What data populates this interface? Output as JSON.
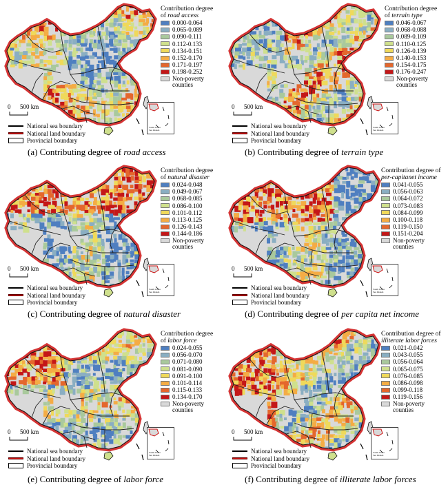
{
  "colors": {
    "non_poverty": "#d9d9d9",
    "sea_boundary": "#000000",
    "land_boundary": "#cc1010",
    "province_fill": "#ffffff"
  },
  "non_poverty_label": [
    "Non-poverty",
    "counties"
  ],
  "boundary_legend": [
    "National sea boundary",
    "National land boundary",
    "Provincial boundary"
  ],
  "scale_label": "500 km",
  "scale_zero": "0",
  "inset_label": [
    "South China",
    "Sea Islands"
  ],
  "panels": [
    {
      "caption_prefix": "(a) Contributing degree of ",
      "caption_italic": "road access",
      "legend_title_line1": "Contribution degree",
      "legend_title_prefix": "of ",
      "legend_title_italic": "road access",
      "classes": [
        "0.000-0.064",
        "0.065-0.089",
        "0.090-0.111",
        "0.112-0.133",
        "0.134-0.151",
        "0.152-0.170",
        "0.171-0.197",
        "0.198-0.252"
      ],
      "colors": [
        "#4f7fc0",
        "#8aaec2",
        "#a9c99c",
        "#cfe08d",
        "#efd95b",
        "#f4ac45",
        "#e4672d",
        "#c41718"
      ]
    },
    {
      "caption_prefix": "(b) Contributing degree of ",
      "caption_italic": "terrain type",
      "legend_title_line1": "Contribution degree",
      "legend_title_prefix": "of ",
      "legend_title_italic": "terrain type",
      "classes": [
        "0.046-0.067",
        "0.068-0.088",
        "0.089-0.109",
        "0.110-0.125",
        "0.126-0.139",
        "0.140-0.153",
        "0.154-0.175",
        "0.176-0.247"
      ],
      "colors": [
        "#4f7fc0",
        "#8aaec2",
        "#a9c99c",
        "#cfe08d",
        "#efd95b",
        "#f4ac45",
        "#e4672d",
        "#c41718"
      ]
    },
    {
      "caption_prefix": "(c) Contributing degree of ",
      "caption_italic": "natural disaster",
      "legend_title_line1": "Contribution degree",
      "legend_title_prefix": "of ",
      "legend_title_italic": "natural disaster",
      "classes": [
        "0.024-0.048",
        "0.049-0.067",
        "0.068-0.085",
        "0.086-0.100",
        "0.101-0.112",
        "0.113-0.125",
        "0.126-0.143",
        "0.144-0.186"
      ],
      "colors": [
        "#4f7fc0",
        "#8aaec2",
        "#a9c99c",
        "#cfe08d",
        "#efd95b",
        "#f4ac45",
        "#e4672d",
        "#c41718"
      ]
    },
    {
      "caption_prefix": "(d)  Contributing degree of ",
      "caption_italic": "per capita net income",
      "legend_title_line1": "Contribution degree of",
      "legend_title_prefix": "",
      "legend_title_italic": "per-capitanet income",
      "classes": [
        "0.041-0.055",
        "0.056-0.063",
        "0.064-0.072",
        "0.073-0.083",
        "0.084-0.099",
        "0.100-0.118",
        "0.119-0.150",
        "0.151-0.204"
      ],
      "colors": [
        "#4f7fc0",
        "#8aaec2",
        "#a9c99c",
        "#cfe08d",
        "#efd95b",
        "#f4ac45",
        "#e4672d",
        "#c41718"
      ]
    },
    {
      "caption_prefix": "(e) Contributing degree of ",
      "caption_italic": "labor force",
      "legend_title_line1": "Contribution degree",
      "legend_title_prefix": "of ",
      "legend_title_italic": "labor force",
      "classes": [
        "0.024-0.055",
        "0.056-0.070",
        "0.071-0.080",
        "0.081-0.090",
        "0.091-0.100",
        "0.101-0.114",
        "0.115-0.133",
        "0.134-0.170"
      ],
      "colors": [
        "#4f7fc0",
        "#8aaec2",
        "#a9c99c",
        "#cfe08d",
        "#efd95b",
        "#f4ac45",
        "#e4672d",
        "#c41718"
      ]
    },
    {
      "caption_prefix": "(f) Contributing degree of ",
      "caption_italic": "illiterate labor forces",
      "legend_title_line1": "Contribution degree of",
      "legend_title_prefix": "",
      "legend_title_italic": "illiterate labor forces",
      "classes": [
        "0.021-0.042",
        "0.043-0.055",
        "0.056-0.064",
        "0.065-0.075",
        "0.076-0.085",
        "0.086-0.098",
        "0.099-0.118",
        "0.119-0.156"
      ],
      "colors": [
        "#4f7fc0",
        "#8aaec2",
        "#a9c99c",
        "#cfe08d",
        "#efd95b",
        "#f4ac45",
        "#e4672d",
        "#c41718"
      ]
    }
  ]
}
